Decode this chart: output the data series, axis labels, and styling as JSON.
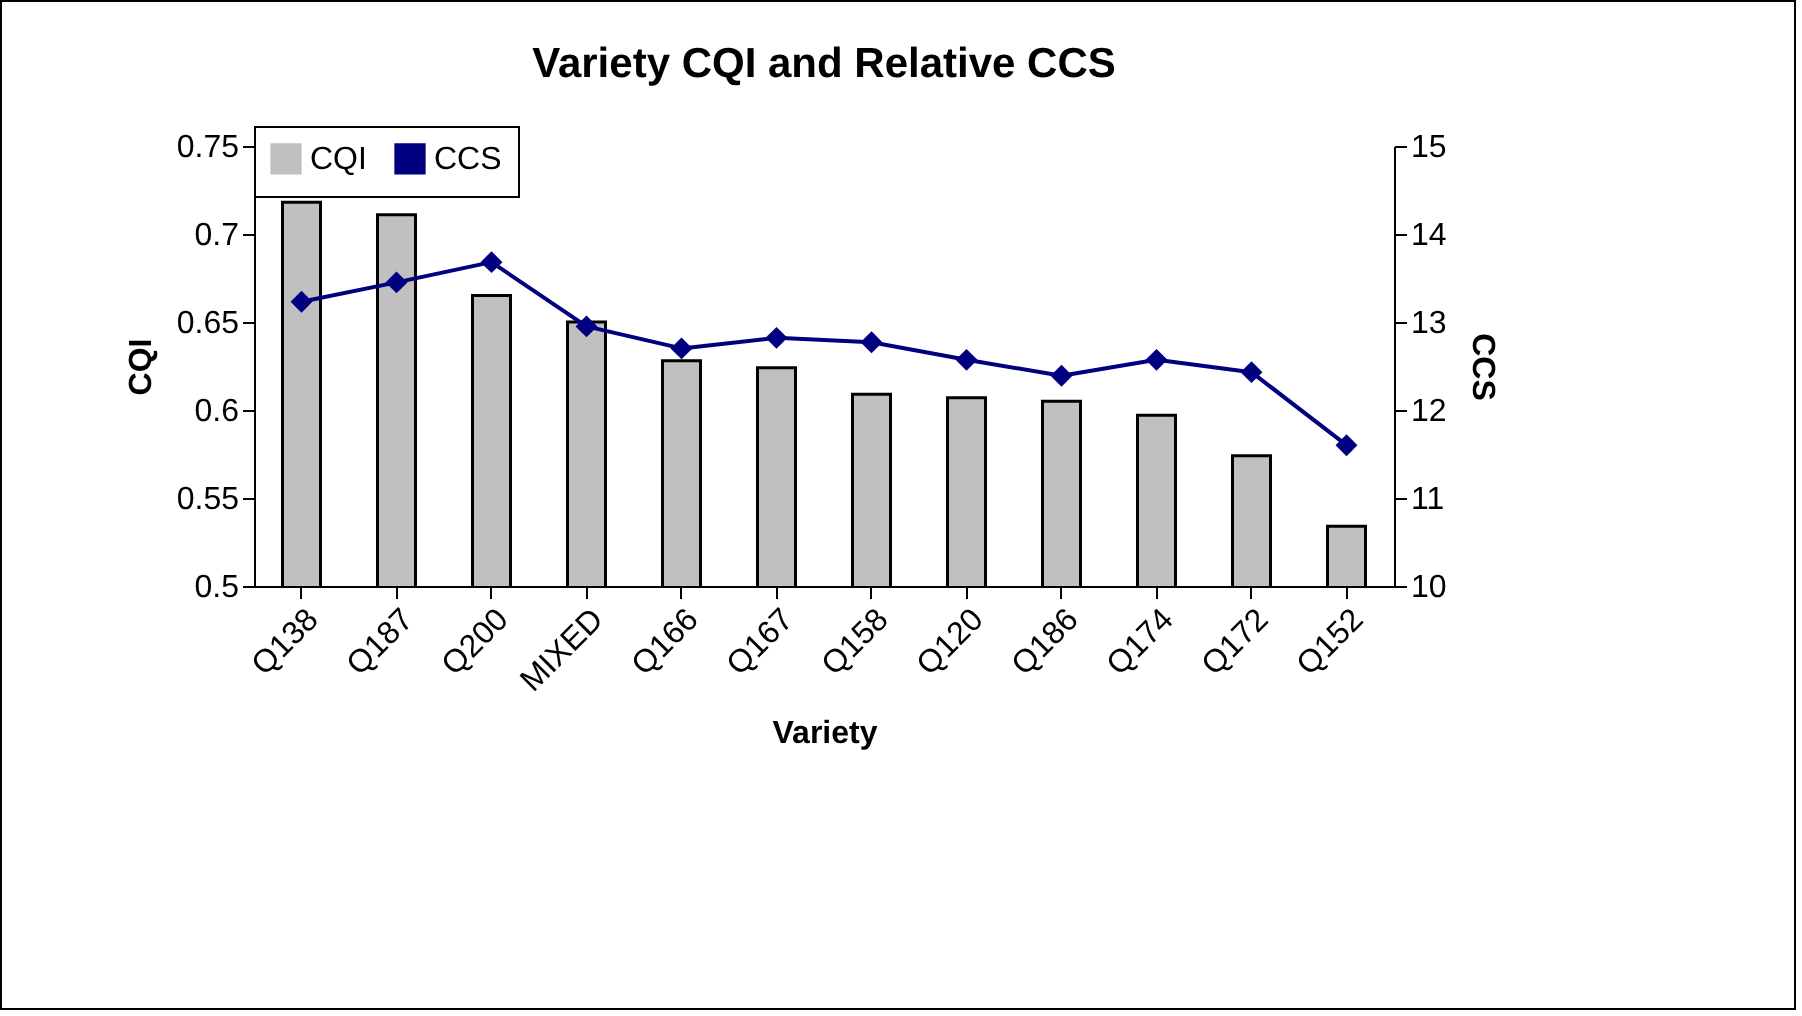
{
  "chart_data": {
    "type": "bar",
    "title": "Variety CQI and Relative CCS",
    "xlabel": "Variety",
    "ylabel": "CQI",
    "y2label": "CCS",
    "categories": [
      "Q138",
      "Q187",
      "Q200",
      "MIXED",
      "Q166",
      "Q167",
      "Q158",
      "Q120",
      "Q186",
      "Q174",
      "Q172",
      "Q152"
    ],
    "series": [
      {
        "name": "CQI",
        "color": "#c0c0c0",
        "values": [
          0.718,
          0.711,
          0.665,
          0.65,
          0.628,
          0.624,
          0.609,
          0.607,
          0.605,
          0.597,
          0.574,
          0.534
        ]
      },
      {
        "name": "CCS",
        "type": "line",
        "axis": "y2",
        "color": "#000080",
        "marker": "diamond",
        "values": [
          13.23,
          13.45,
          13.68,
          12.95,
          12.7,
          12.82,
          12.77,
          12.57,
          12.39,
          12.57,
          12.43,
          11.6
        ]
      }
    ],
    "ylim": [
      0.5,
      0.75
    ],
    "yticks": [
      0.5,
      0.55,
      0.6,
      0.65,
      0.7,
      0.75
    ],
    "y2lim": [
      10,
      15
    ],
    "y2ticks": [
      10,
      11,
      12,
      13,
      14,
      15
    ],
    "grid": false,
    "legend": "top"
  }
}
